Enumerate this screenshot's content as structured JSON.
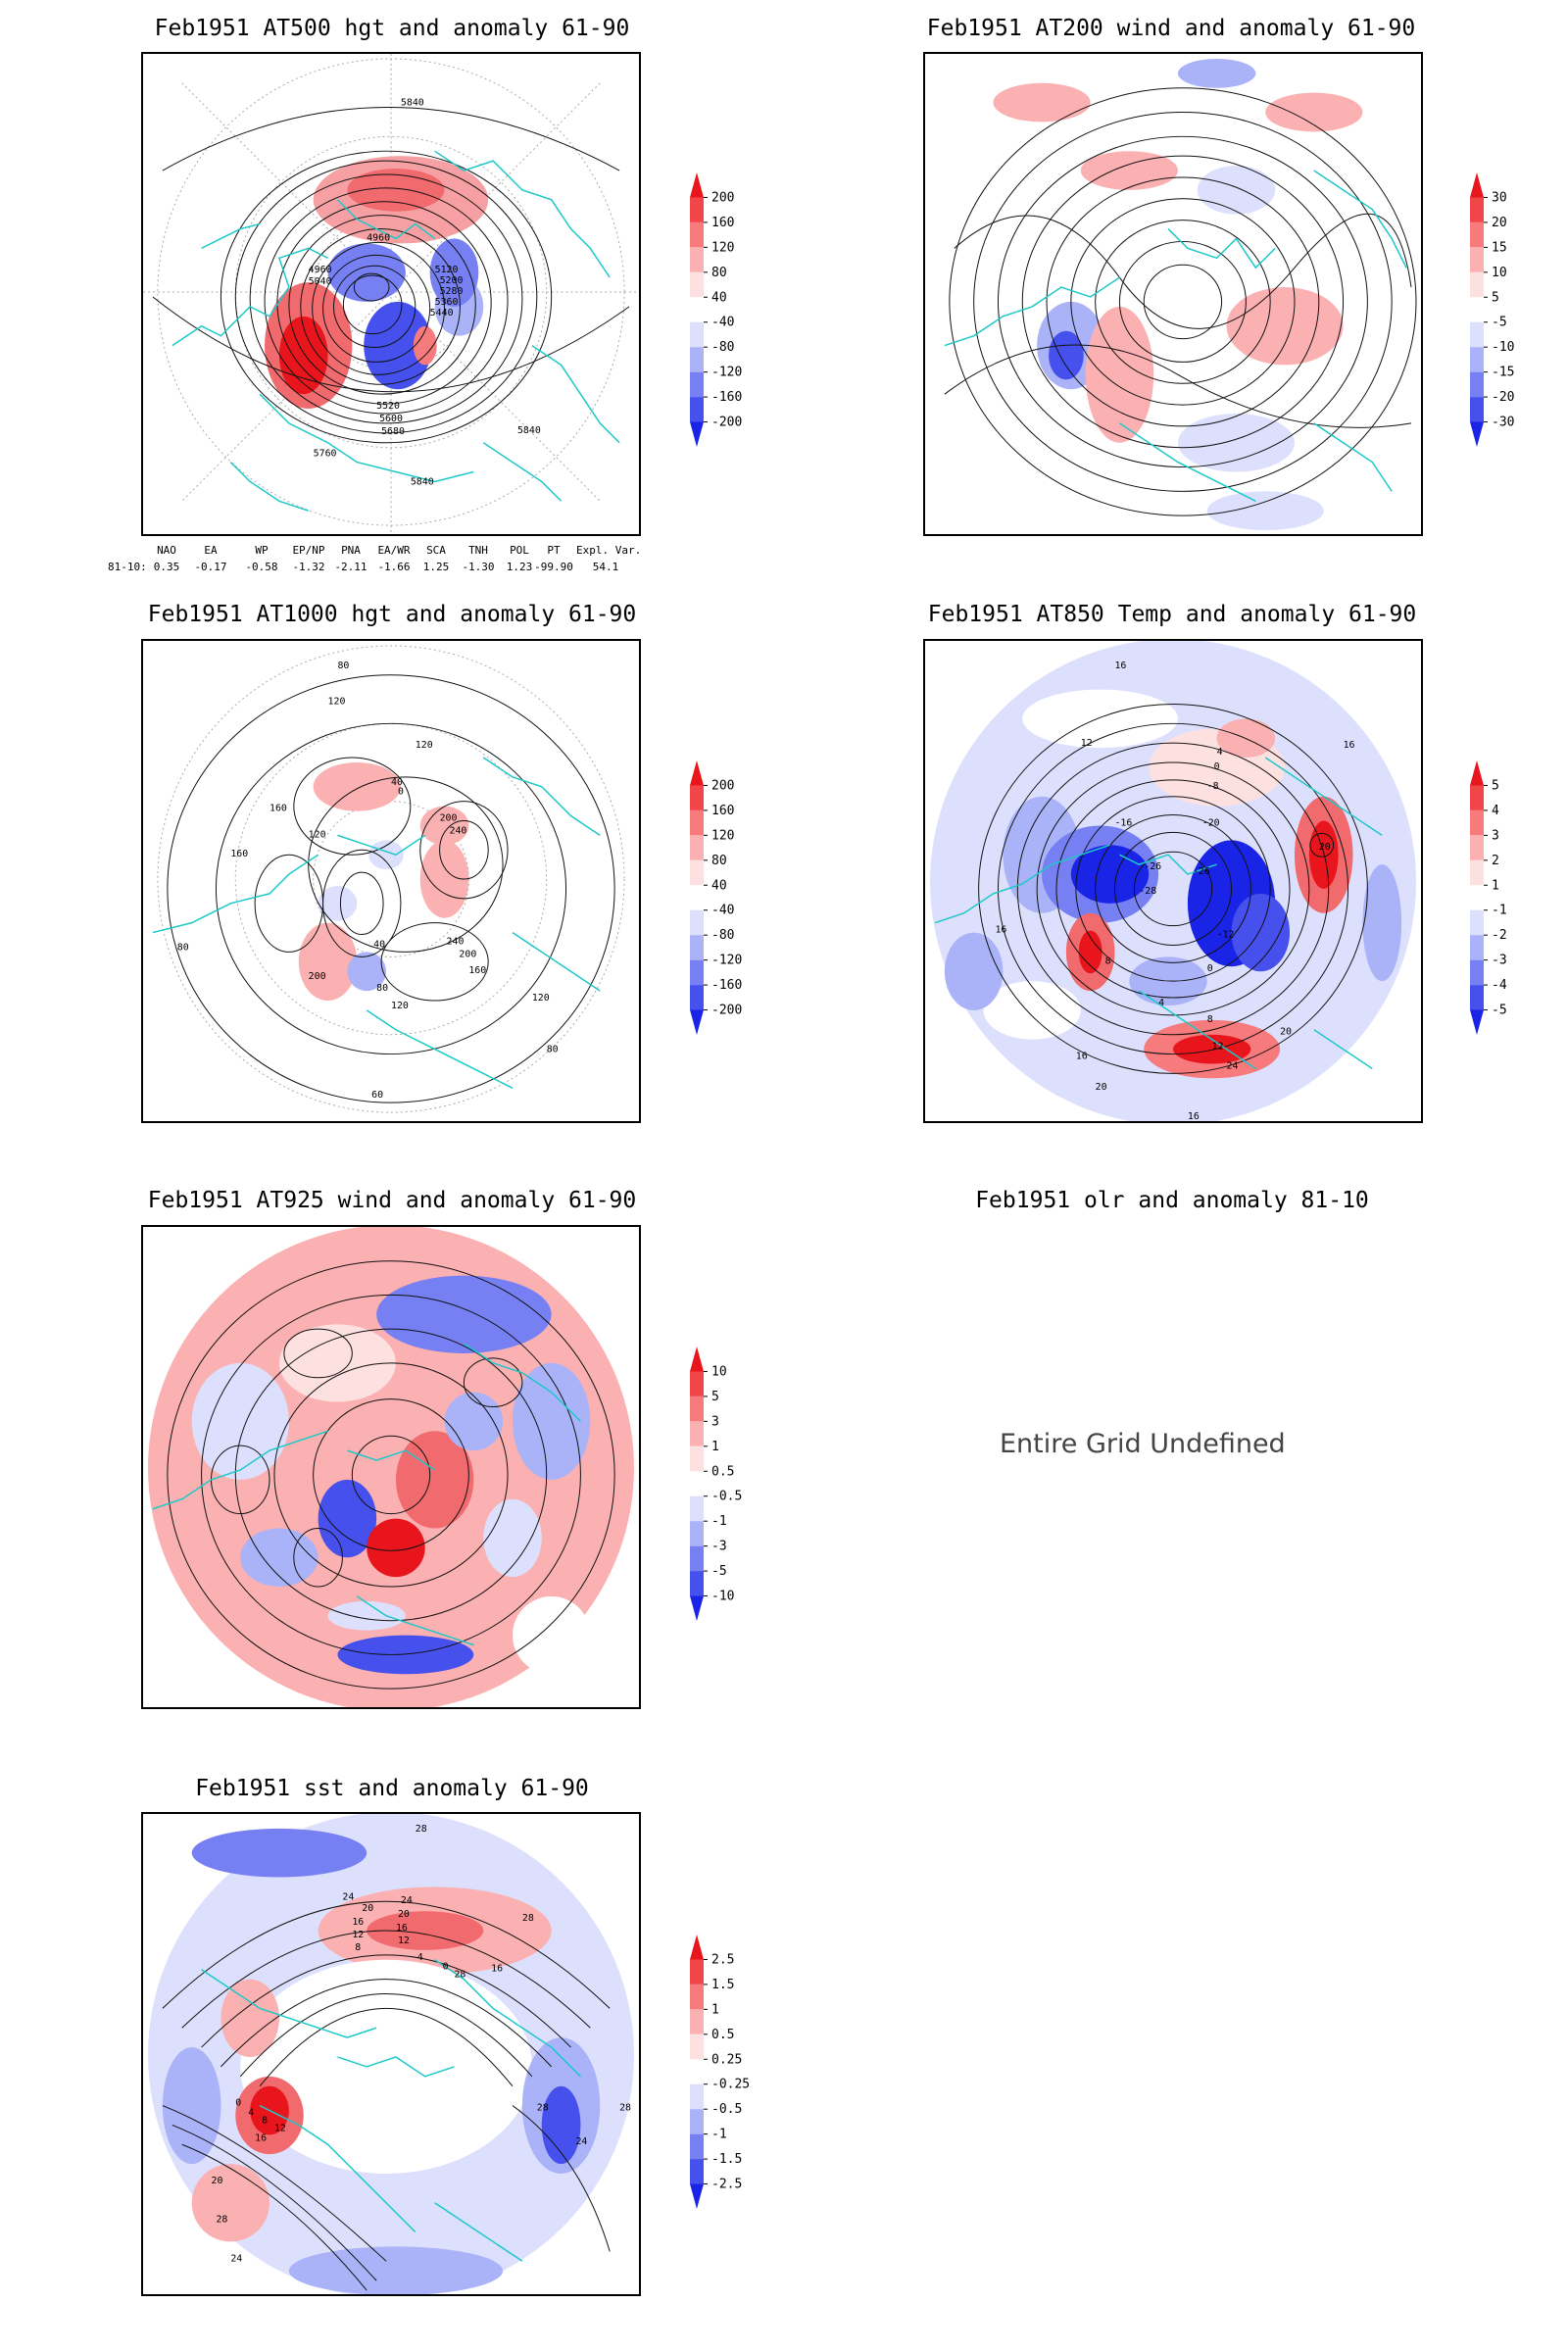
{
  "panels": [
    {
      "id": "p500",
      "title": "Feb1951 AT500 hgt and anomaly 61-90",
      "contour_labels": [
        "5840",
        "4960",
        "4960",
        "5040",
        "5120",
        "5200",
        "5280",
        "5360",
        "5440",
        "5520",
        "5600",
        "5680",
        "5760",
        "5840",
        "5840"
      ],
      "colorbar": {
        "labels": [
          "200",
          "160",
          "120",
          "80",
          "40",
          "-40",
          "-80",
          "-120",
          "-160",
          "-200"
        ],
        "colors": [
          "#e8151c",
          "#f2454a",
          "#f77a7d",
          "#fbb0b2",
          "#fde0e0",
          "#ffffff",
          "#dde0fd",
          "#aab2f8",
          "#7680f2",
          "#4650ec",
          "#1a24e6"
        ]
      }
    },
    {
      "id": "p200",
      "title": "Feb1951 AT200 wind and anomaly 61-90",
      "colorbar": {
        "labels": [
          "30",
          "20",
          "15",
          "10",
          "5",
          "-5",
          "-10",
          "-15",
          "-20",
          "-30"
        ],
        "colors": [
          "#e8151c",
          "#f2454a",
          "#f77a7d",
          "#fbb0b2",
          "#fde0e0",
          "#ffffff",
          "#dde0fd",
          "#aab2f8",
          "#7680f2",
          "#4650ec",
          "#1a24e6"
        ]
      }
    },
    {
      "id": "p1000",
      "title": "Feb1951 AT1000 hgt and anomaly 61-90",
      "contour_labels": [
        "80",
        "120",
        "120",
        "160",
        "40",
        "0",
        "200",
        "240",
        "160",
        "120",
        "80",
        "200",
        "40",
        "120",
        "80",
        "240",
        "200",
        "160",
        "120",
        "80",
        "60"
      ],
      "colorbar": {
        "labels": [
          "200",
          "160",
          "120",
          "80",
          "40",
          "-40",
          "-80",
          "-120",
          "-160",
          "-200"
        ],
        "colors": [
          "#e8151c",
          "#f2454a",
          "#f77a7d",
          "#fbb0b2",
          "#fde0e0",
          "#ffffff",
          "#dde0fd",
          "#aab2f8",
          "#7680f2",
          "#4650ec",
          "#1a24e6"
        ]
      }
    },
    {
      "id": "p850",
      "title": "Feb1951 AT850 Temp and anomaly 61-90",
      "contour_labels": [
        "16",
        "12",
        "4",
        "0",
        "-8",
        "-16",
        "-20",
        "-26",
        "-26",
        "-28",
        "-12",
        "8",
        "20",
        "16",
        "16",
        "4",
        "8",
        "12",
        "24",
        "16",
        "20",
        "16",
        "20",
        "0"
      ],
      "colorbar": {
        "labels": [
          "5",
          "4",
          "3",
          "2",
          "1",
          "-1",
          "-2",
          "-3",
          "-4",
          "-5"
        ],
        "colors": [
          "#e8151c",
          "#f2454a",
          "#f77a7d",
          "#fbb0b2",
          "#fde0e0",
          "#ffffff",
          "#dde0fd",
          "#aab2f8",
          "#7680f2",
          "#4650ec",
          "#1a24e6"
        ]
      }
    },
    {
      "id": "p925",
      "title": "Feb1951 AT925 wind and anomaly 61-90",
      "colorbar": {
        "labels": [
          "10",
          "5",
          "3",
          "1",
          "0.5",
          "-0.5",
          "-1",
          "-3",
          "-5",
          "-10"
        ],
        "colors": [
          "#e8151c",
          "#f2454a",
          "#f77a7d",
          "#fbb0b2",
          "#fde0e0",
          "#ffffff",
          "#dde0fd",
          "#aab2f8",
          "#7680f2",
          "#4650ec",
          "#1a24e6"
        ]
      }
    },
    {
      "id": "polr",
      "title": "Feb1951 olr and anomaly 81-10",
      "message": "Entire Grid Undefined"
    },
    {
      "id": "psst",
      "title": "Feb1951 sst and anomaly 61-90",
      "contour_labels": [
        "28",
        "24",
        "20",
        "24",
        "16",
        "20",
        "12",
        "16",
        "8",
        "12",
        "4",
        "0",
        "28",
        "16",
        "0",
        "4",
        "8",
        "12",
        "16",
        "20",
        "24",
        "28",
        "28",
        "24",
        "28",
        "28"
      ],
      "colorbar": {
        "labels": [
          "2.5",
          "1.5",
          "1",
          "0.5",
          "0.25",
          "-0.25",
          "-0.5",
          "-1",
          "-1.5",
          "-2.5"
        ],
        "colors": [
          "#e8151c",
          "#f2454a",
          "#f77a7d",
          "#fbb0b2",
          "#fde0e0",
          "#ffffff",
          "#dde0fd",
          "#aab2f8",
          "#7680f2",
          "#4650ec",
          "#1a24e6"
        ]
      }
    }
  ],
  "teleconnection_indices": {
    "headers": [
      "NAO",
      "EA",
      "WP",
      "EP/NP",
      "PNA",
      "EA/WR",
      "SCA",
      "TNH",
      "POL",
      "PT",
      "Expl. Var."
    ],
    "row_label": "81-10:",
    "values": [
      "0.35",
      "-0.17",
      "-0.58",
      "-1.32",
      "-2.11",
      "-1.66",
      "1.25",
      "-1.30",
      "1.23",
      "-99.90",
      "54.1"
    ]
  }
}
